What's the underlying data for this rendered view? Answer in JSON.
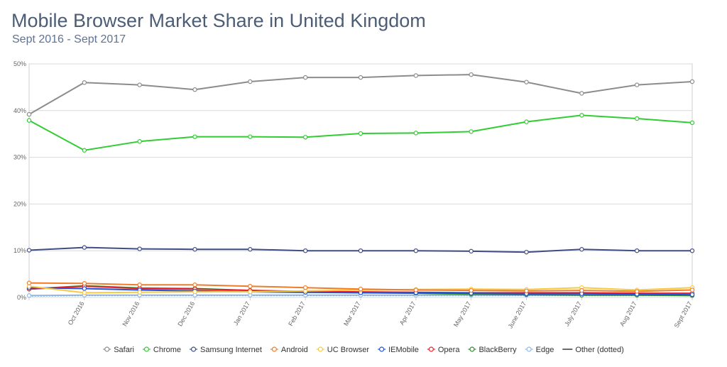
{
  "chart_data": {
    "type": "line",
    "title": "Mobile Browser Market Share in United Kingdom",
    "subtitle": "Sept 2016 - Sept 2017",
    "xlabel": "",
    "ylabel": "",
    "ylim": [
      0,
      50
    ],
    "yticks": [
      "0%",
      "10%",
      "20%",
      "30%",
      "40%",
      "50%"
    ],
    "categories": [
      "Sept 2016",
      "Oct 2016",
      "Nov 2016",
      "Dec 2016",
      "Jan 2017",
      "Feb 2017",
      "Mar 2017",
      "Apr 2017",
      "May 2017",
      "June 2017",
      "July 2017",
      "Aug 2017",
      "Sept 2017"
    ],
    "category_labels": [
      "",
      "Oct 2016",
      "Nov 2016",
      "Dec 2016",
      "Jan 2017",
      "Feb 2017",
      "Mar 2017",
      "Apr 2017",
      "May 2017",
      "June 2017",
      "July 2017",
      "Aug 2017",
      "Sept 2017"
    ],
    "grid": true,
    "legend_position": "bottom",
    "series": [
      {
        "name": "Safari",
        "color": "#8c8c8c",
        "values": [
          39.2,
          46.0,
          45.5,
          44.5,
          46.2,
          47.1,
          47.1,
          47.5,
          47.7,
          46.1,
          43.7,
          45.5,
          46.2
        ]
      },
      {
        "name": "Chrome",
        "color": "#33cc33",
        "values": [
          37.9,
          31.5,
          33.4,
          34.4,
          34.4,
          34.3,
          35.1,
          35.2,
          35.5,
          37.6,
          39.0,
          38.3,
          37.4
        ]
      },
      {
        "name": "Samsung Internet",
        "color": "#3f4d85",
        "values": [
          10.1,
          10.7,
          10.4,
          10.3,
          10.3,
          10.0,
          10.0,
          10.0,
          9.9,
          9.7,
          10.3,
          10.0,
          10.0
        ]
      },
      {
        "name": "Android",
        "color": "#ee7c2c",
        "values": [
          3.1,
          3.0,
          2.7,
          2.7,
          2.4,
          2.1,
          1.8,
          1.6,
          1.5,
          1.4,
          1.5,
          1.3,
          1.6
        ]
      },
      {
        "name": "UC Browser",
        "color": "#f7ca45",
        "values": [
          2.4,
          1.0,
          1.1,
          1.2,
          1.2,
          1.4,
          1.6,
          1.7,
          1.8,
          1.7,
          2.1,
          1.6,
          2.1
        ]
      },
      {
        "name": "IEMobile",
        "color": "#2250d8",
        "values": [
          2.1,
          1.9,
          1.6,
          1.4,
          1.2,
          1.1,
          1.0,
          1.0,
          0.9,
          0.8,
          0.8,
          0.7,
          0.6
        ]
      },
      {
        "name": "Opera",
        "color": "#e8232a",
        "values": [
          1.8,
          2.4,
          1.9,
          1.8,
          1.5,
          1.3,
          1.2,
          1.1,
          1.0,
          1.0,
          1.0,
          0.9,
          0.9
        ]
      },
      {
        "name": "BlackBerry",
        "color": "#2f8a2f",
        "values": [
          1.8,
          2.5,
          2.0,
          1.9,
          1.5,
          1.2,
          1.0,
          0.9,
          0.7,
          0.6,
          0.5,
          0.5,
          0.4
        ]
      },
      {
        "name": "Edge",
        "color": "#8fb8e8",
        "values": [
          0.4,
          0.5,
          0.5,
          0.5,
          0.5,
          0.5,
          0.5,
          0.5,
          0.5,
          0.5,
          0.5,
          0.5,
          0.5
        ]
      },
      {
        "name": "Other (dotted)",
        "color": "#6a6a6a",
        "dotted": true,
        "values": [
          0.3,
          0.4,
          0.4,
          0.4,
          0.4,
          0.4,
          0.4,
          0.4,
          0.4,
          0.4,
          0.4,
          0.4,
          0.4
        ]
      }
    ]
  }
}
